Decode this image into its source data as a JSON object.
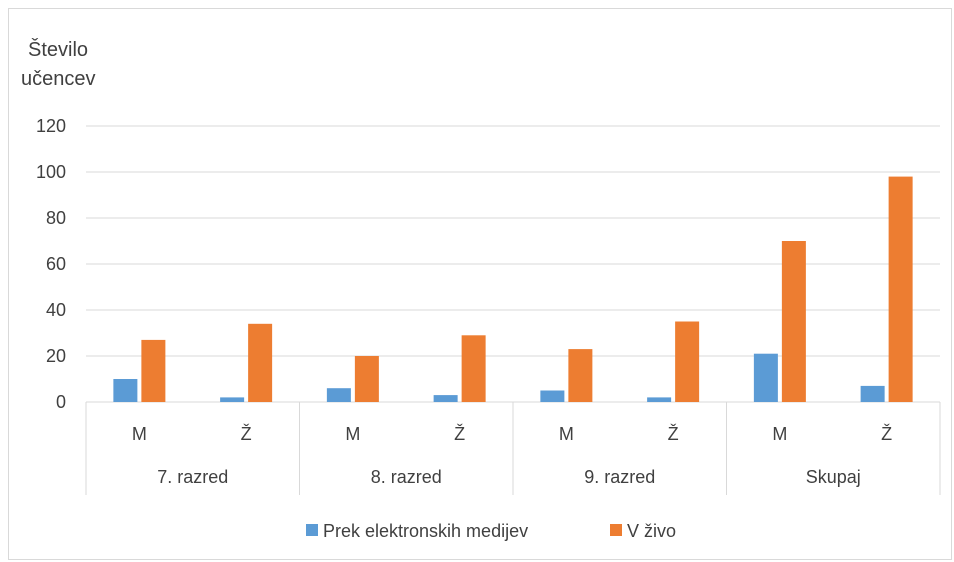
{
  "chart_data": {
    "type": "bar",
    "title": "",
    "ylabel_lines": [
      "Število",
      "učencev"
    ],
    "xlabel": "",
    "ylim": [
      0,
      120
    ],
    "yticks": [
      0,
      20,
      40,
      60,
      80,
      100,
      120
    ],
    "groups": [
      "7. razred",
      "8. razred",
      "9. razred",
      "Skupaj"
    ],
    "categories": [
      "M",
      "Ž",
      "M",
      "Ž",
      "M",
      "Ž",
      "M",
      "Ž"
    ],
    "series": [
      {
        "name": "Prek elektronskih medijev",
        "color": "#5b9bd5",
        "values": [
          10,
          2,
          6,
          3,
          5,
          2,
          21,
          7
        ]
      },
      {
        "name": "V živo",
        "color": "#ed7d31",
        "values": [
          27,
          34,
          20,
          29,
          23,
          35,
          70,
          98
        ]
      }
    ],
    "grid": true,
    "legend_position": "bottom"
  }
}
